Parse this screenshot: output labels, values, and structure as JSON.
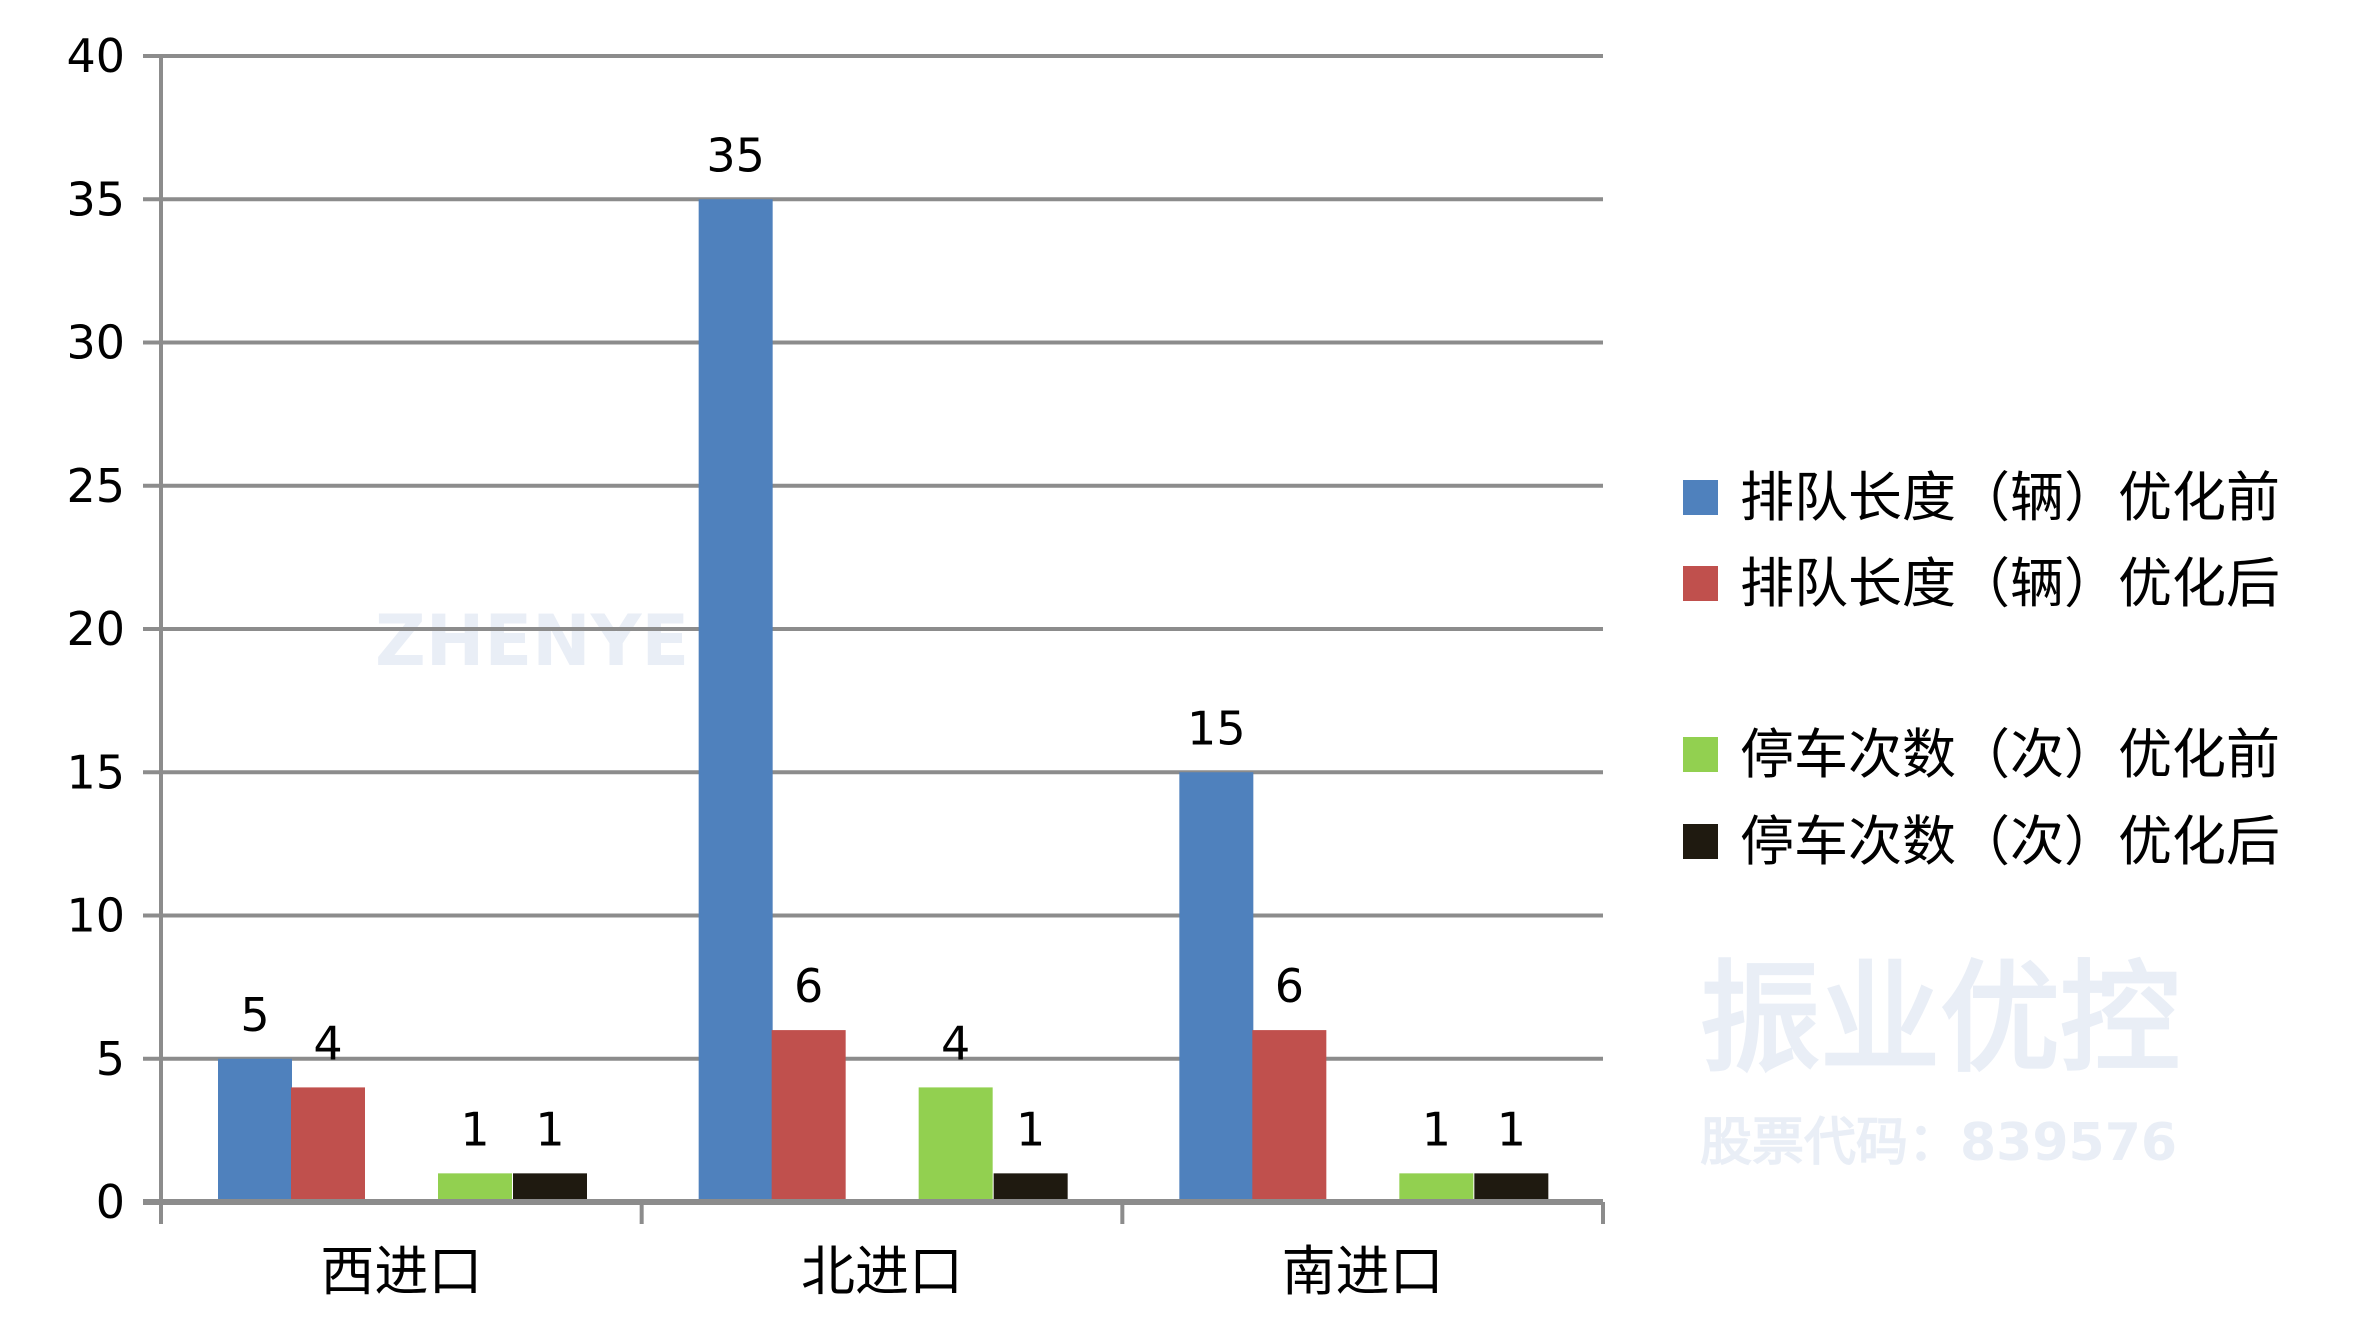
{
  "chart_data": {
    "type": "bar",
    "title": "",
    "xlabel": "",
    "ylabel": "",
    "categories": [
      "西进口",
      "北进口",
      "南进口"
    ],
    "ylim": [
      0,
      40
    ],
    "yticks": [
      0,
      5,
      10,
      15,
      20,
      25,
      30,
      35,
      40
    ],
    "grid": true,
    "legend_position": "right",
    "data_labels": true,
    "series": [
      {
        "name": "排队长度（辆）优化前",
        "values": [
          5,
          35,
          15
        ],
        "color": "#4f81bd"
      },
      {
        "name": "排队长度（辆）优化后",
        "values": [
          4,
          6,
          6
        ],
        "color": "#c0504d"
      },
      {
        "name": "停车次数（次）优化前",
        "values": [
          1,
          4,
          1
        ],
        "color": "#92d050"
      },
      {
        "name": "停车次数（次）优化后",
        "values": [
          1,
          1,
          1
        ],
        "color": "#1f1a10"
      }
    ]
  },
  "watermark": {
    "name": "振业优控",
    "stock_code": "股票代码：839576",
    "logo_text": "ZHENYE"
  }
}
